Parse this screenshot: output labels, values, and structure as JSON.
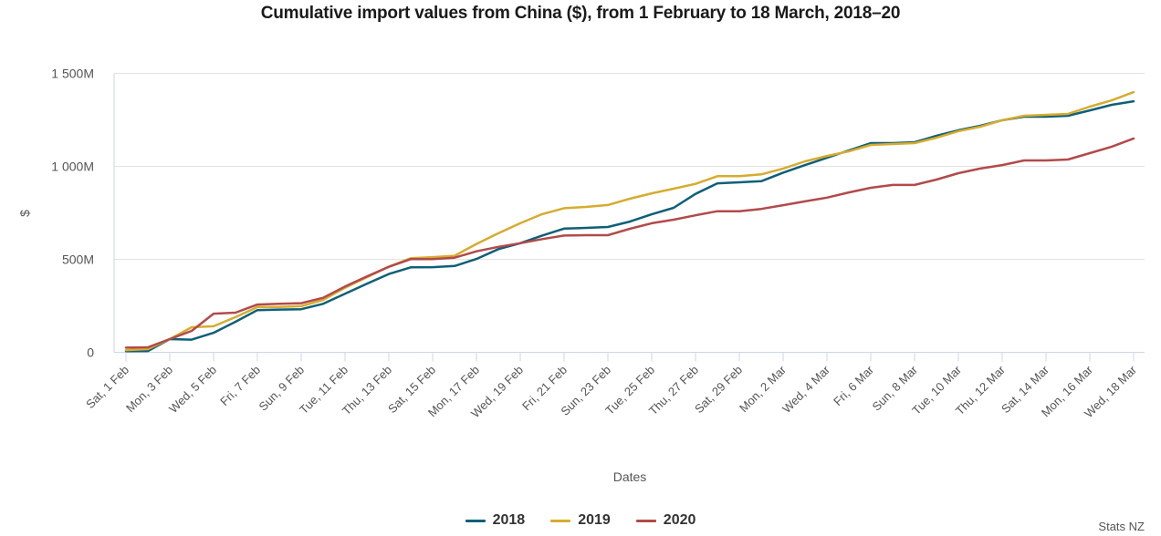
{
  "chart_data": {
    "type": "line",
    "title": "Cumulative import values from China ($), from 1 February to 18 March, 2018–20",
    "xlabel": "Dates",
    "ylabel": "$",
    "ylim": [
      0,
      1500
    ],
    "y_unit": "M",
    "yticks": [
      0,
      500,
      1000,
      1500
    ],
    "ytick_labels": [
      "0",
      "500M",
      "1 000M",
      "1 500M"
    ],
    "grid": "horizontal",
    "legend_position": "bottom-center",
    "credit": "Stats NZ",
    "x": [
      "Sat, 1 Feb",
      "Sun, 2 Feb",
      "Mon, 3 Feb",
      "Tue, 4 Feb",
      "Wed, 5 Feb",
      "Thu, 6 Feb",
      "Fri, 7 Feb",
      "Sat, 8 Feb",
      "Sun, 9 Feb",
      "Mon, 10 Feb",
      "Tue, 11 Feb",
      "Wed, 12 Feb",
      "Thu, 13 Feb",
      "Fri, 14 Feb",
      "Sat, 15 Feb",
      "Sun, 16 Feb",
      "Mon, 17 Feb",
      "Tue, 18 Feb",
      "Wed, 19 Feb",
      "Thu, 20 Feb",
      "Fri, 21 Feb",
      "Sat, 22 Feb",
      "Sun, 23 Feb",
      "Mon, 24 Feb",
      "Tue, 25 Feb",
      "Wed, 26 Feb",
      "Thu, 27 Feb",
      "Fri, 28 Feb",
      "Sat, 29 Feb",
      "Sun, 1 Mar",
      "Mon, 2 Mar",
      "Tue, 3 Mar",
      "Wed, 4 Mar",
      "Thu, 5 Mar",
      "Fri, 6 Mar",
      "Sat, 7 Mar",
      "Sun, 8 Mar",
      "Mon, 9 Mar",
      "Tue, 10 Mar",
      "Wed, 11 Mar",
      "Thu, 12 Mar",
      "Fri, 13 Mar",
      "Sat, 14 Mar",
      "Sun, 15 Mar",
      "Mon, 16 Mar",
      "Tue, 17 Mar",
      "Wed, 18 Mar"
    ],
    "xtick_every": 2,
    "series": [
      {
        "name": "2018",
        "color": "#0f5f78",
        "values": [
          6,
          7,
          71,
          68,
          105,
          164,
          227,
          230,
          232,
          261,
          315,
          369,
          421,
          457,
          458,
          464,
          502,
          555,
          587,
          628,
          665,
          669,
          674,
          703,
          742,
          777,
          852,
          909,
          914,
          920,
          966,
          1007,
          1046,
          1086,
          1125,
          1125,
          1130,
          1164,
          1194,
          1218,
          1248,
          1267,
          1267,
          1272,
          1301,
          1331,
          1350
        ]
      },
      {
        "name": "2019",
        "color": "#d6ac2f",
        "values": [
          12,
          17,
          71,
          135,
          140,
          189,
          243,
          244,
          248,
          282,
          347,
          404,
          461,
          506,
          512,
          519,
          583,
          640,
          694,
          743,
          775,
          782,
          792,
          826,
          855,
          880,
          906,
          947,
          947,
          957,
          988,
          1027,
          1056,
          1081,
          1115,
          1120,
          1125,
          1154,
          1189,
          1213,
          1248,
          1272,
          1277,
          1282,
          1321,
          1355,
          1399
        ]
      },
      {
        "name": "2020",
        "color": "#b24a4a",
        "values": [
          25,
          27,
          71,
          115,
          208,
          213,
          257,
          261,
          264,
          293,
          354,
          408,
          460,
          501,
          501,
          509,
          543,
          567,
          587,
          609,
          628,
          630,
          630,
          664,
          694,
          713,
          737,
          759,
          759,
          771,
          791,
          812,
          832,
          860,
          885,
          900,
          900,
          929,
          963,
          988,
          1007,
          1032,
          1032,
          1037,
          1071,
          1106,
          1150
        ]
      }
    ]
  }
}
